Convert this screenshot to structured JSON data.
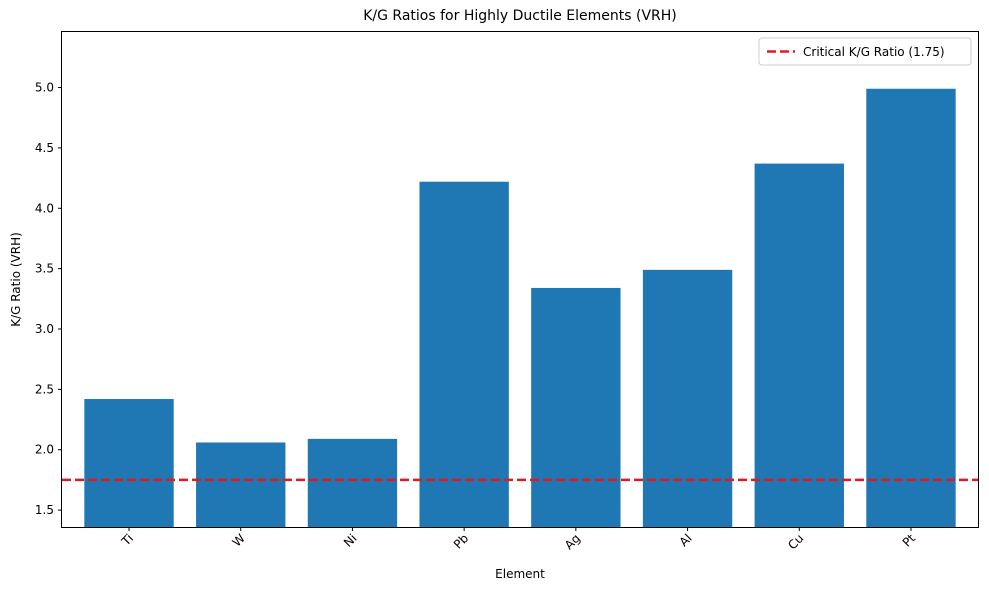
{
  "chart_data": {
    "type": "bar",
    "title": "K/G Ratios for Highly Ductile Elements (VRH)",
    "xlabel": "Element",
    "ylabel": "K/G Ratio (VRH)",
    "categories": [
      "Ti",
      "W",
      "Ni",
      "Pb",
      "Ag",
      "Al",
      "Cu",
      "Pt"
    ],
    "values": [
      2.42,
      2.06,
      2.09,
      4.22,
      3.34,
      3.49,
      4.37,
      4.99
    ],
    "ylim": [
      1.36,
      5.46
    ],
    "yticks": [
      "1.5",
      "2.0",
      "2.5",
      "3.0",
      "3.5",
      "4.0",
      "4.5",
      "5.0"
    ],
    "bar_color": "#1f77b4",
    "reference_line": {
      "value": 1.75,
      "label": "Critical K/G Ratio (1.75)",
      "color": "#e31a1c",
      "style": "dashed"
    },
    "legend": {
      "placement": "top-right"
    },
    "grid": false,
    "x_tick_rotation": 45
  }
}
